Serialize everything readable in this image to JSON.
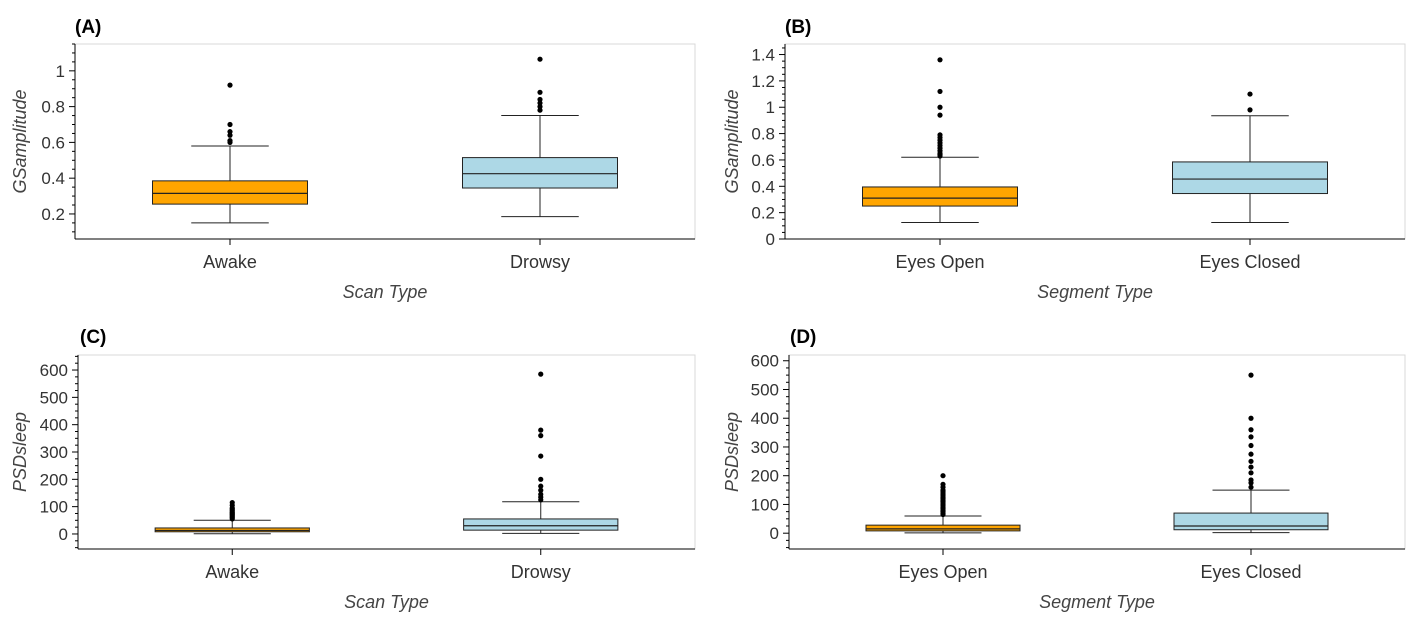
{
  "colors": {
    "awake_or_eyes_open": "#FFA500",
    "drowsy_or_eyes_closed": "#ADD8E6",
    "outline": "#222222",
    "outlier": "#000000"
  },
  "chart_data": [
    {
      "type": "box",
      "panel_label": "(A)",
      "xlabel": "Scan Type",
      "ylabel": "GSamplitude",
      "ylim": [
        0.06,
        1.15
      ],
      "yticks": [
        0.2,
        0.4,
        0.6,
        0.8,
        1
      ],
      "ytick_labels": [
        "0.2",
        "0.4",
        "0.6",
        "0.8",
        "1"
      ],
      "minor_ticks": true,
      "categories": [
        "Awake",
        "Drowsy"
      ],
      "boxes": [
        {
          "category": "Awake",
          "color": "#FFA500",
          "whisker_low": 0.15,
          "q1": 0.255,
          "median": 0.315,
          "q3": 0.385,
          "whisker_high": 0.58,
          "outliers": [
            0.6,
            0.61,
            0.64,
            0.66,
            0.7,
            0.92
          ]
        },
        {
          "category": "Drowsy",
          "color": "#ADD8E6",
          "whisker_low": 0.185,
          "q1": 0.345,
          "median": 0.425,
          "q3": 0.515,
          "whisker_high": 0.75,
          "outliers": [
            0.78,
            0.8,
            0.82,
            0.84,
            0.88,
            1.065
          ]
        }
      ]
    },
    {
      "type": "box",
      "panel_label": "(B)",
      "xlabel": "Segment Type",
      "ylabel": "GSamplitude",
      "ylim": [
        0,
        1.48
      ],
      "yticks": [
        0,
        0.2,
        0.4,
        0.6,
        0.8,
        1,
        1.2,
        1.4
      ],
      "ytick_labels": [
        "0",
        "0.2",
        "0.4",
        "0.6",
        "0.8",
        "1",
        "1.2",
        "1.4"
      ],
      "minor_ticks": true,
      "categories": [
        "Eyes Open",
        "Eyes Closed"
      ],
      "boxes": [
        {
          "category": "Eyes Open",
          "color": "#FFA500",
          "whisker_low": 0.125,
          "q1": 0.25,
          "median": 0.31,
          "q3": 0.395,
          "whisker_high": 0.62,
          "outliers": [
            0.63,
            0.64,
            0.65,
            0.67,
            0.69,
            0.71,
            0.73,
            0.75,
            0.77,
            0.79,
            0.94,
            1.0,
            1.12,
            1.36
          ]
        },
        {
          "category": "Eyes Closed",
          "color": "#ADD8E6",
          "whisker_low": 0.125,
          "q1": 0.345,
          "median": 0.455,
          "q3": 0.585,
          "whisker_high": 0.935,
          "outliers": [
            0.98,
            1.1
          ]
        }
      ]
    },
    {
      "type": "box",
      "panel_label": "(C)",
      "xlabel": "Scan Type",
      "ylabel": "PSDsleep",
      "ylim": [
        -55,
        655
      ],
      "yticks": [
        0,
        100,
        200,
        300,
        400,
        500,
        600
      ],
      "ytick_labels": [
        "0",
        "100",
        "200",
        "300",
        "400",
        "500",
        "600"
      ],
      "minor_ticks": true,
      "categories": [
        "Awake",
        "Drowsy"
      ],
      "boxes": [
        {
          "category": "Awake",
          "color": "#FFA500",
          "whisker_low": 1,
          "q1": 8,
          "median": 13,
          "q3": 22,
          "whisker_high": 50,
          "outliers": [
            55,
            60,
            64,
            68,
            72,
            76,
            80,
            85,
            90,
            95,
            105,
            115
          ]
        },
        {
          "category": "Drowsy",
          "color": "#ADD8E6",
          "whisker_low": 2,
          "q1": 14,
          "median": 30,
          "q3": 55,
          "whisker_high": 118,
          "outliers": [
            125,
            135,
            145,
            160,
            175,
            200,
            285,
            360,
            380,
            585
          ]
        }
      ]
    },
    {
      "type": "box",
      "panel_label": "(D)",
      "xlabel": "Segment Type",
      "ylabel": "PSDsleep",
      "ylim": [
        -55,
        620
      ],
      "yticks": [
        0,
        100,
        200,
        300,
        400,
        500,
        600
      ],
      "ytick_labels": [
        "0",
        "100",
        "200",
        "300",
        "400",
        "500",
        "600"
      ],
      "minor_ticks": true,
      "categories": [
        "Eyes Open",
        "Eyes Closed"
      ],
      "boxes": [
        {
          "category": "Eyes Open",
          "color": "#FFA500",
          "whisker_low": 1,
          "q1": 8,
          "median": 15,
          "q3": 28,
          "whisker_high": 60,
          "outliers": [
            65,
            70,
            75,
            80,
            85,
            90,
            95,
            100,
            105,
            110,
            115,
            120,
            125,
            130,
            135,
            140,
            145,
            150,
            160,
            170,
            200
          ]
        },
        {
          "category": "Eyes Closed",
          "color": "#ADD8E6",
          "whisker_low": 2,
          "q1": 12,
          "median": 25,
          "q3": 70,
          "whisker_high": 150,
          "outliers": [
            160,
            175,
            185,
            210,
            230,
            250,
            275,
            305,
            335,
            360,
            400,
            550
          ]
        }
      ]
    }
  ]
}
